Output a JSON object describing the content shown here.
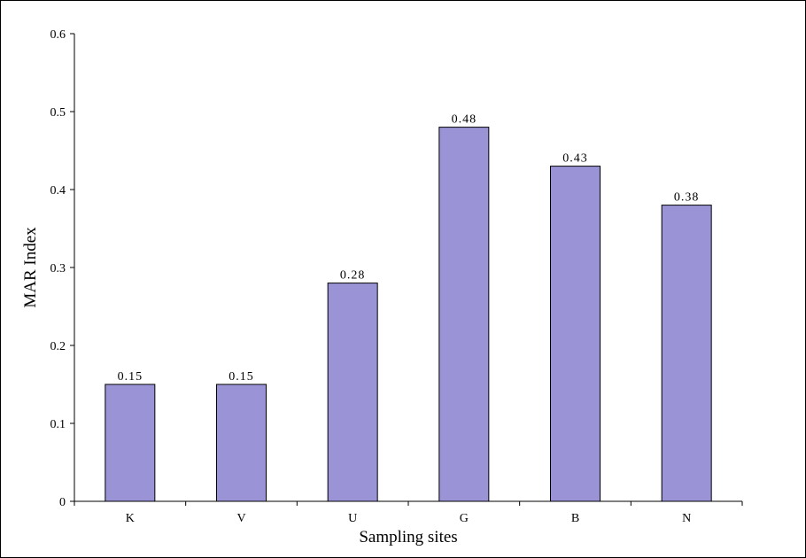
{
  "chart_data": {
    "type": "bar",
    "title": "",
    "xlabel": "Sampling sites",
    "ylabel": "MAR Index",
    "categories": [
      "K",
      "V",
      "U",
      "G",
      "B",
      "N"
    ],
    "values": [
      0.15,
      0.15,
      0.28,
      0.48,
      0.43,
      0.38
    ],
    "data_labels": [
      "0.15",
      "0.15",
      "0.28",
      "0.48",
      "0.43",
      "0.38"
    ],
    "ylim": [
      0,
      0.6
    ],
    "yticks": [
      0,
      0.1,
      0.2,
      0.3,
      0.4,
      0.5,
      0.6
    ],
    "ytick_labels": [
      "0",
      "0.1",
      "0.2",
      "0.3",
      "0.4",
      "0.5",
      "0.6"
    ],
    "grid": false,
    "legend": "none",
    "bar_color": "#9a93d6",
    "bar_edge_color": "#000000"
  }
}
